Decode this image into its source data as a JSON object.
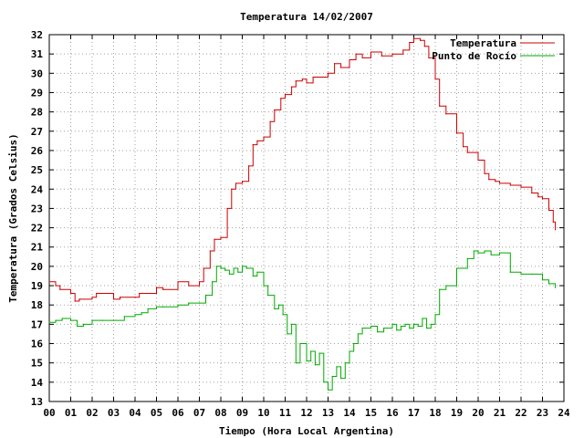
{
  "chart_data": {
    "type": "line",
    "title": "Temperatura 14/02/2007",
    "xlabel": "Tiempo (Hora Local Argentina)",
    "ylabel": "Temperatura (Grados Celsius)",
    "xlim": [
      0,
      24
    ],
    "ylim": [
      13,
      32
    ],
    "x_ticks": [
      "00",
      "01",
      "02",
      "03",
      "04",
      "05",
      "06",
      "07",
      "08",
      "09",
      "10",
      "11",
      "12",
      "13",
      "14",
      "15",
      "16",
      "17",
      "18",
      "19",
      "20",
      "21",
      "22",
      "23",
      "24"
    ],
    "y_ticks": [
      "13",
      "14",
      "15",
      "16",
      "17",
      "18",
      "19",
      "20",
      "21",
      "22",
      "23",
      "24",
      "25",
      "26",
      "27",
      "28",
      "29",
      "30",
      "31",
      "32"
    ],
    "grid": true,
    "legend_position": "top-right",
    "series": [
      {
        "name": "Temperatura",
        "color": "#cc0000",
        "x": [
          0.0,
          0.3,
          0.5,
          1.0,
          1.2,
          1.4,
          2.0,
          2.2,
          3.0,
          3.3,
          4.0,
          4.2,
          5.0,
          5.3,
          6.0,
          6.5,
          7.0,
          7.2,
          7.5,
          7.7,
          8.0,
          8.3,
          8.5,
          8.7,
          9.0,
          9.3,
          9.5,
          9.7,
          10.0,
          10.3,
          10.5,
          10.8,
          11.0,
          11.3,
          11.5,
          11.8,
          12.0,
          12.3,
          12.6,
          13.0,
          13.3,
          13.6,
          14.0,
          14.3,
          14.6,
          15.0,
          15.5,
          16.0,
          16.5,
          16.8,
          17.0,
          17.3,
          17.5,
          17.7,
          18.0,
          18.2,
          18.5,
          19.0,
          19.3,
          19.5,
          20.0,
          20.3,
          20.5,
          20.8,
          21.0,
          21.5,
          22.0,
          22.5,
          22.8,
          23.0,
          23.3,
          23.5,
          23.6
        ],
        "y": [
          19.2,
          19.0,
          18.8,
          18.6,
          18.2,
          18.3,
          18.4,
          18.6,
          18.3,
          18.4,
          18.4,
          18.6,
          18.9,
          18.8,
          19.2,
          19.0,
          19.2,
          19.9,
          20.8,
          21.4,
          21.5,
          23.0,
          24.0,
          24.3,
          24.4,
          25.2,
          26.3,
          26.5,
          26.7,
          27.5,
          28.1,
          28.7,
          28.9,
          29.3,
          29.6,
          29.7,
          29.5,
          29.8,
          29.8,
          30.0,
          30.5,
          30.3,
          30.7,
          31.0,
          30.8,
          31.1,
          30.9,
          31.0,
          31.2,
          31.6,
          31.8,
          31.7,
          31.4,
          30.8,
          29.7,
          28.3,
          27.9,
          26.9,
          26.2,
          25.9,
          25.5,
          24.8,
          24.5,
          24.4,
          24.3,
          24.2,
          24.1,
          23.8,
          23.6,
          23.5,
          22.9,
          22.3,
          21.9
        ]
      },
      {
        "name": "Punto de Rocío",
        "color": "#00aa00",
        "x": [
          0.0,
          0.3,
          0.6,
          1.0,
          1.3,
          1.6,
          2.0,
          2.5,
          3.0,
          3.5,
          4.0,
          4.3,
          4.6,
          5.0,
          5.3,
          6.0,
          6.5,
          7.0,
          7.3,
          7.6,
          7.8,
          8.0,
          8.2,
          8.4,
          8.6,
          8.8,
          9.0,
          9.2,
          9.5,
          9.7,
          10.0,
          10.2,
          10.5,
          10.7,
          10.9,
          11.1,
          11.3,
          11.5,
          11.7,
          12.0,
          12.2,
          12.4,
          12.6,
          12.8,
          13.0,
          13.2,
          13.4,
          13.6,
          13.8,
          14.0,
          14.2,
          14.4,
          14.6,
          15.0,
          15.3,
          15.6,
          16.0,
          16.2,
          16.4,
          16.6,
          16.8,
          17.0,
          17.2,
          17.4,
          17.6,
          17.8,
          18.0,
          18.2,
          18.5,
          19.0,
          19.5,
          19.8,
          20.0,
          20.3,
          20.6,
          21.0,
          21.5,
          22.0,
          22.5,
          23.0,
          23.3,
          23.6
        ],
        "y": [
          17.1,
          17.2,
          17.3,
          17.2,
          16.9,
          17.0,
          17.2,
          17.2,
          17.2,
          17.4,
          17.5,
          17.6,
          17.8,
          17.9,
          17.9,
          18.0,
          18.1,
          18.1,
          18.5,
          19.2,
          20.0,
          19.9,
          19.8,
          19.6,
          19.9,
          19.7,
          20.0,
          19.9,
          19.5,
          19.7,
          19.0,
          18.5,
          17.8,
          18.0,
          17.5,
          16.5,
          17.0,
          15.0,
          16.0,
          15.1,
          15.6,
          14.9,
          15.5,
          14.0,
          13.6,
          14.3,
          14.8,
          14.2,
          15.0,
          15.6,
          16.0,
          16.5,
          16.8,
          16.9,
          16.6,
          16.8,
          17.0,
          16.7,
          16.9,
          17.0,
          16.8,
          17.0,
          16.9,
          17.3,
          16.8,
          17.0,
          17.5,
          18.8,
          19.0,
          19.9,
          20.4,
          20.8,
          20.7,
          20.8,
          20.6,
          20.7,
          19.7,
          19.6,
          19.6,
          19.3,
          19.1,
          18.9
        ]
      }
    ]
  }
}
